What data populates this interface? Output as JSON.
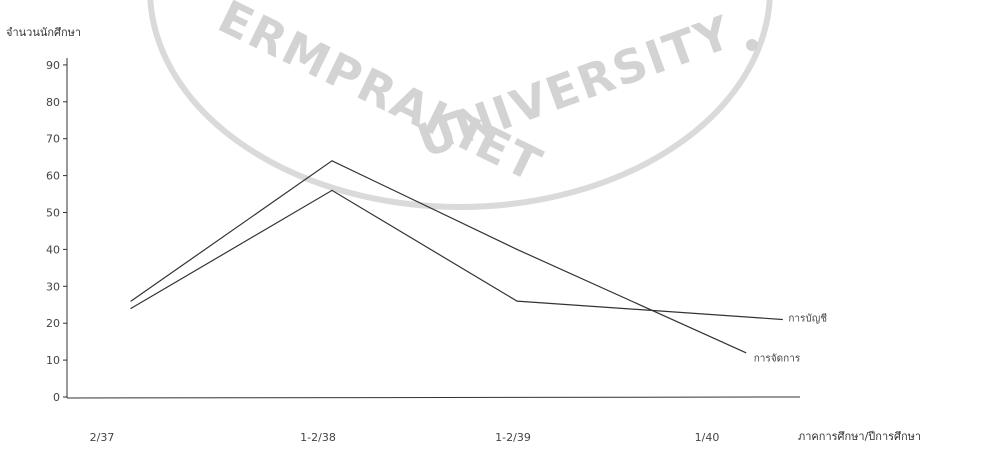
{
  "chart_data": {
    "type": "line",
    "ylabel": "จำนวนนักศึกษา",
    "xlabel": "ภาคการศึกษา/ปีการศึกษา",
    "categories": [
      "2/37",
      "1-2/38",
      "1-2/39",
      "1/40"
    ],
    "yticks": [
      0,
      10,
      20,
      30,
      40,
      50,
      60,
      70,
      80,
      90
    ],
    "ylim": [
      0,
      95
    ],
    "grid": false,
    "series": [
      {
        "name": "การบัญชี",
        "values": [
          24,
          56,
          26,
          21
        ]
      },
      {
        "name": "การจัดการ",
        "values": [
          26,
          64,
          40,
          12
        ]
      }
    ],
    "series_extra_x": [
      3.45,
      3.25
    ],
    "line_color": "#333333"
  },
  "watermark": {
    "text_top": "ERMPRAKIET",
    "text_bottom": "UNIVERSITY",
    "color": "#cfcfcf"
  }
}
